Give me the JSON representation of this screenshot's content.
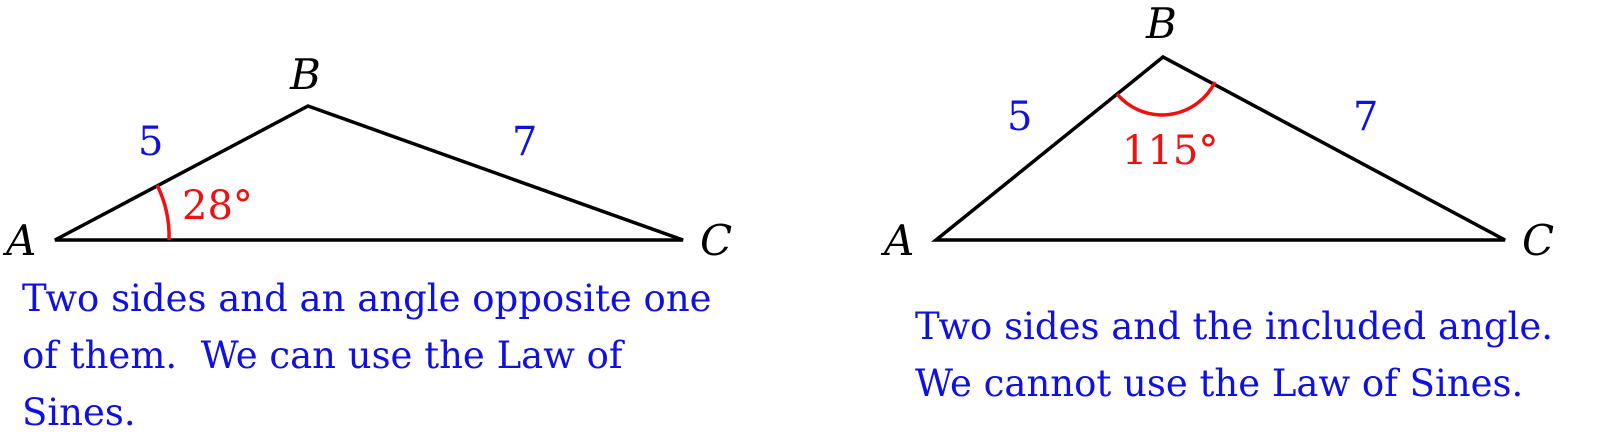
{
  "colors": {
    "text": "#1010e0",
    "angle": "#f01010",
    "line": "#000000"
  },
  "left_triangle": {
    "vertex_a": "A",
    "vertex_b": "B",
    "vertex_c": "C",
    "side_ab": "5",
    "side_bc": "7",
    "angle_a": "28°",
    "caption": [
      "Two sides and an angle opposite one",
      "of them.  We can use the Law of",
      "Sines."
    ]
  },
  "right_triangle": {
    "vertex_a": "A",
    "vertex_b": "B",
    "vertex_c": "C",
    "side_ab": "5",
    "side_bc": "7",
    "angle_b": "115°",
    "caption": [
      "Two sides and the included angle.",
      "We cannot use the Law of Sines."
    ]
  }
}
